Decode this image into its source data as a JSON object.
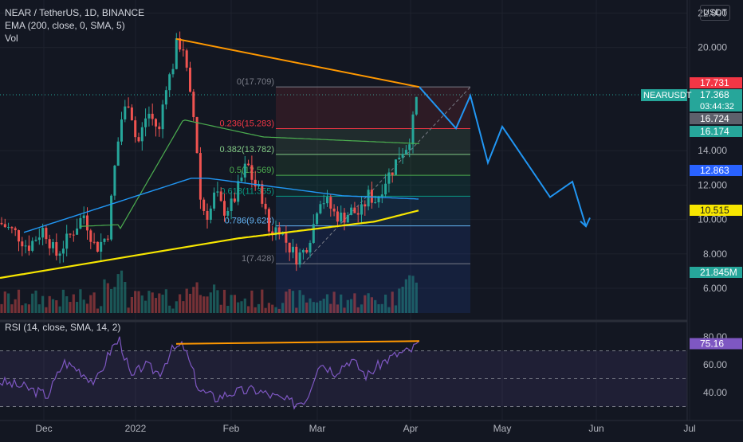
{
  "header": {
    "symbol_line": "NEAR / TetherUS, 1D, BINANCE",
    "ema_line": "EMA (200, close, 0, SMA, 5)",
    "vol_line": "Vol"
  },
  "currency_button": "USDT",
  "rsi_title": "RSI (14, close, SMA, 14, 2)",
  "price_axis": {
    "ticks": [
      "22.000",
      "20.000",
      "14.000",
      "12.000",
      "10.000",
      "8.000",
      "6.000"
    ],
    "markers": [
      {
        "name": "price-marker-fib-top",
        "text": "17.731",
        "color": "#f23645"
      },
      {
        "name": "price-marker-last",
        "text": "17.368",
        "color": "#26a69a"
      },
      {
        "name": "price-marker-countdown",
        "text": "03:44:32",
        "color": "#26a69a"
      },
      {
        "name": "price-marker-fib-236",
        "text": "16.724",
        "color": "#5d606b"
      },
      {
        "name": "price-marker-ma",
        "text": "16.174",
        "color": "#26a69a"
      },
      {
        "name": "price-marker-ma-blue",
        "text": "12.863",
        "color": "#2962ff"
      },
      {
        "name": "price-marker-ema200",
        "text": "10.515",
        "color": "#f7e600"
      },
      {
        "name": "volume-marker",
        "text": "21.845M",
        "color": "#26a69a"
      }
    ],
    "symbol_tag": "NEARUSDT"
  },
  "rsi_axis": {
    "ticks": [
      "80.00",
      "60.00",
      "40.00"
    ],
    "value": "75.16"
  },
  "time_axis": [
    "Dec",
    "2022",
    "Feb",
    "Mar",
    "Apr",
    "May",
    "Jun",
    "Jul"
  ],
  "fib_levels": [
    {
      "label": "0(17.709)",
      "price": 17.709,
      "color": "#787b86"
    },
    {
      "label": "0.236(15.283)",
      "price": 15.283,
      "color": "#f23645"
    },
    {
      "label": "0.382(13.782)",
      "price": 13.782,
      "color": "#81c784"
    },
    {
      "label": "0.5(12.569)",
      "price": 12.569,
      "color": "#4caf50"
    },
    {
      "label": "0.618(11.355)",
      "price": 11.355,
      "color": "#089981"
    },
    {
      "label": "0.786(9.628)",
      "price": 9.628,
      "color": "#64b5f6"
    },
    {
      "label": "1(7.428)",
      "price": 7.428,
      "color": "#787b86"
    }
  ],
  "colors": {
    "up": "#26a69a",
    "down": "#ef5350",
    "ema200": "#f7e600",
    "trendline": "#ff9800",
    "projection": "#2196f3",
    "rsi": "#7e57c2"
  }
}
